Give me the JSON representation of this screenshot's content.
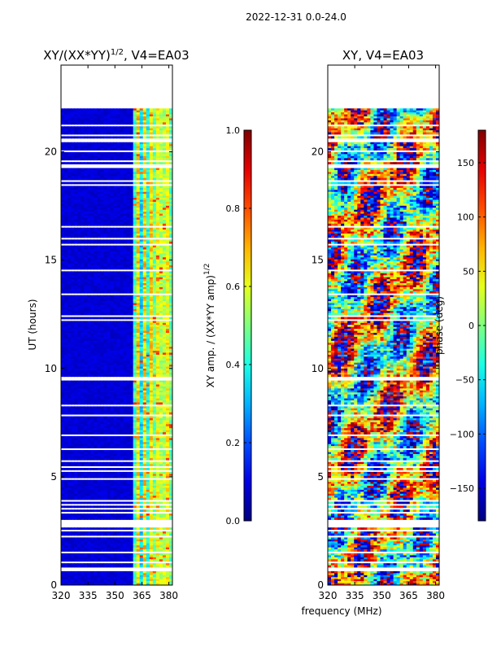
{
  "suptitle": "2022-12-31 0.0-24.0",
  "colors": {
    "background": "#ffffff",
    "axis": "#000000",
    "gap": "#ffffff"
  },
  "chart_data": [
    {
      "type": "heatmap",
      "title": "XY/(XX*YY)",
      "title_sup": "1/2",
      "title_suffix": ", V4=EA03",
      "xlabel": "",
      "ylabel": "UT (hours)",
      "xlim": [
        320,
        382
      ],
      "ylim": [
        0,
        24
      ],
      "xticks": [
        "320",
        "335",
        "350",
        "365",
        "380"
      ],
      "xtick_values": [
        320,
        335,
        350,
        365,
        380
      ],
      "yticks": [
        "0",
        "5",
        "10",
        "15",
        "20"
      ],
      "ytick_values": [
        0,
        5,
        10,
        15,
        20
      ],
      "data_extent_hours": [
        0,
        22
      ],
      "colormap": "jet",
      "colorbar": {
        "label": "XY amp. / (XX*YY amp)",
        "label_sup": "1/2",
        "range": [
          0.0,
          1.0
        ],
        "ticks": [
          "0.0",
          "0.2",
          "0.4",
          "0.6",
          "0.8",
          "1.0"
        ],
        "tick_values": [
          0.0,
          0.2,
          0.4,
          0.6,
          0.8,
          1.0
        ]
      }
    },
    {
      "type": "heatmap",
      "title": "XY, V4=EA03",
      "xlabel": "frequency (MHz)",
      "ylabel": "",
      "xlim": [
        320,
        382
      ],
      "ylim": [
        0,
        24
      ],
      "xticks": [
        "320",
        "335",
        "350",
        "365",
        "380"
      ],
      "xtick_values": [
        320,
        335,
        350,
        365,
        380
      ],
      "yticks": [
        "0",
        "5",
        "10",
        "15",
        "20"
      ],
      "ytick_values": [
        0,
        5,
        10,
        15,
        20
      ],
      "data_extent_hours": [
        0,
        22
      ],
      "colormap": "jet",
      "colorbar": {
        "label": "phase (deg)",
        "range": [
          -180,
          180
        ],
        "ticks": [
          "−150",
          "−100",
          "−50",
          "0",
          "50",
          "100",
          "150"
        ],
        "tick_values": [
          -150,
          -100,
          -50,
          0,
          50,
          100,
          150
        ]
      }
    }
  ]
}
